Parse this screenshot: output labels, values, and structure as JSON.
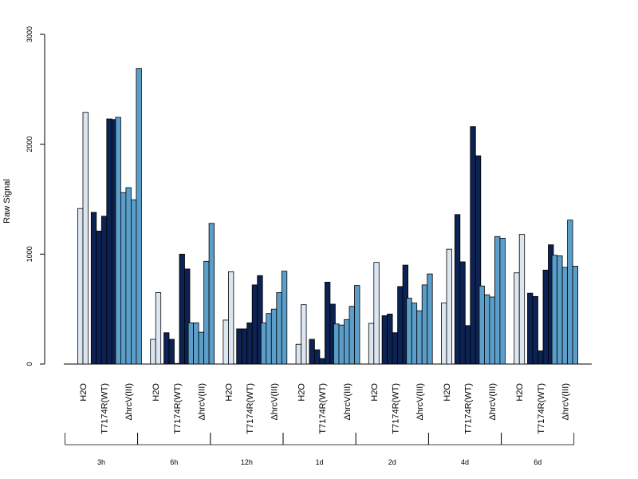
{
  "chart_data": {
    "type": "bar",
    "title": "",
    "ylabel": "Raw Signal",
    "ylim": [
      0,
      3000
    ],
    "yticks": [
      0,
      1000,
      2000,
      3000
    ],
    "ytick_labels": [
      "0",
      "1000",
      "2000",
      "3000"
    ],
    "groups": [
      "3h",
      "6h",
      "12h",
      "1d",
      "2d",
      "4d",
      "6d"
    ],
    "conditions": [
      "H2O",
      "T7174R(WT)",
      "ΔhrcV(III)"
    ],
    "colors": {
      "H2O": "#dbe6f1",
      "T7174R(WT)": "#0c2252",
      "ΔhrcV(III)": "#5b9ec9",
      "outline": "#000000"
    },
    "values": [
      {
        "group": "3h",
        "H2O": [
          1415,
          2290
        ],
        "T7174R(WT)": [
          1380,
          1210,
          1345,
          2230,
          2225
        ],
        "ΔhrcV(III)": [
          2245,
          1560,
          1605,
          1495,
          2690
        ]
      },
      {
        "group": "6h",
        "H2O": [
          225,
          650
        ],
        "T7174R(WT)": [
          285,
          225,
          5,
          1000,
          865
        ],
        "ΔhrcV(III)": [
          375,
          375,
          290,
          935,
          1280
        ]
      },
      {
        "group": "12h",
        "H2O": [
          400,
          840
        ],
        "T7174R(WT)": [
          320,
          320,
          375,
          720,
          805
        ],
        "ΔhrcV(III)": [
          375,
          460,
          500,
          650,
          845
        ]
      },
      {
        "group": "1d",
        "H2O": [
          180,
          540
        ],
        "T7174R(WT)": [
          225,
          130,
          50,
          745,
          545
        ],
        "ΔhrcV(III)": [
          365,
          355,
          405,
          525,
          715
        ]
      },
      {
        "group": "2d",
        "H2O": [
          370,
          925
        ],
        "T7174R(WT)": [
          440,
          455,
          285,
          705,
          900
        ],
        "ΔhrcV(III)": [
          600,
          555,
          485,
          720,
          820
        ]
      },
      {
        "group": "4d",
        "H2O": [
          555,
          1045
        ],
        "T7174R(WT)": [
          1360,
          930,
          350,
          2160,
          1895
        ],
        "ΔhrcV(III)": [
          710,
          630,
          610,
          1160,
          1145
        ]
      },
      {
        "group": "6d",
        "H2O": [
          830,
          1180
        ],
        "T7174R(WT)": [
          645,
          615,
          120,
          855,
          1085
        ],
        "ΔhrcV(III)": [
          990,
          985,
          880,
          1310,
          890
        ]
      }
    ]
  }
}
